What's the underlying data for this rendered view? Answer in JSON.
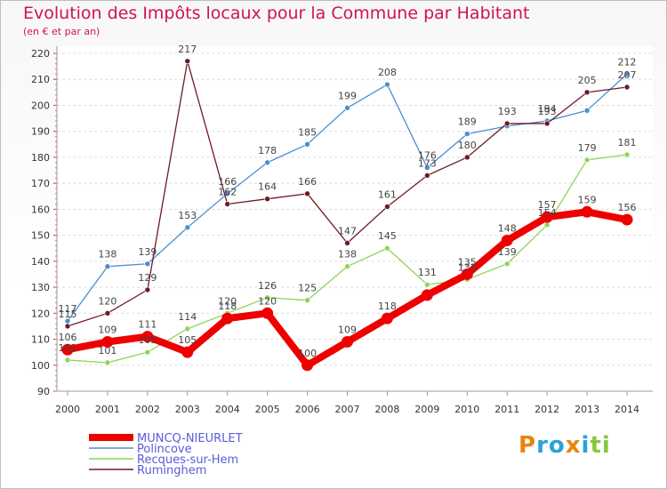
{
  "chart_data": {
    "type": "line",
    "title": "Evolution des Impôts locaux pour la Commune par Habitant",
    "subtitle": "(en € et par an)",
    "x": [
      "2000",
      "2001",
      "2002",
      "2003",
      "2004",
      "2005",
      "2006",
      "2007",
      "2008",
      "2009",
      "2010",
      "2011",
      "2012",
      "2013",
      "2014"
    ],
    "ylim": [
      90,
      220
    ],
    "yticks": [
      90,
      100,
      110,
      120,
      130,
      140,
      150,
      160,
      170,
      180,
      190,
      200,
      210,
      220
    ],
    "grid": "horizontal dashed",
    "legend_position": "bottom-left",
    "series": [
      {
        "name": "MUNCQ-NIEURLET",
        "color": "#ee0000",
        "emphasis": true,
        "values": [
          106,
          109,
          111,
          105,
          118,
          120,
          100,
          109,
          118,
          127,
          135,
          148,
          157,
          159,
          156
        ],
        "labels": [
          "106",
          "109",
          "111",
          "105",
          "118",
          "120",
          "100",
          "109",
          "118",
          "",
          "135",
          "148",
          "157",
          "159",
          "156"
        ]
      },
      {
        "name": "Polincove",
        "color": "#4a8fd0",
        "emphasis": false,
        "values": [
          117,
          138,
          139,
          153,
          166,
          178,
          185,
          199,
          208,
          176,
          189,
          192,
          194,
          198,
          212
        ],
        "labels": [
          "117",
          "138",
          "139",
          "153",
          "166",
          "178",
          "185",
          "199",
          "208",
          "176",
          "189",
          "",
          "194",
          "",
          "212"
        ]
      },
      {
        "name": "Recques-sur-Hem",
        "color": "#8fd45a",
        "emphasis": false,
        "values": [
          102,
          101,
          105,
          114,
          120,
          126,
          125,
          138,
          145,
          131,
          133,
          139,
          154,
          179,
          181
        ],
        "labels": [
          "102",
          "101",
          "105",
          "114",
          "120",
          "126",
          "125",
          "138",
          "145",
          "131",
          "133",
          "139",
          "154",
          "179",
          "181"
        ]
      },
      {
        "name": "Ruminghem",
        "color": "#6e1a24",
        "emphasis": false,
        "values": [
          115,
          120,
          129,
          217,
          162,
          164,
          166,
          147,
          161,
          173,
          180,
          193,
          193,
          205,
          207
        ],
        "labels": [
          "115",
          "120",
          "129",
          "217",
          "162",
          "164",
          "166",
          "147",
          "161",
          "173",
          "180",
          "193",
          "193",
          "205",
          "207"
        ]
      }
    ]
  },
  "logo": {
    "text": "Proxiti"
  }
}
